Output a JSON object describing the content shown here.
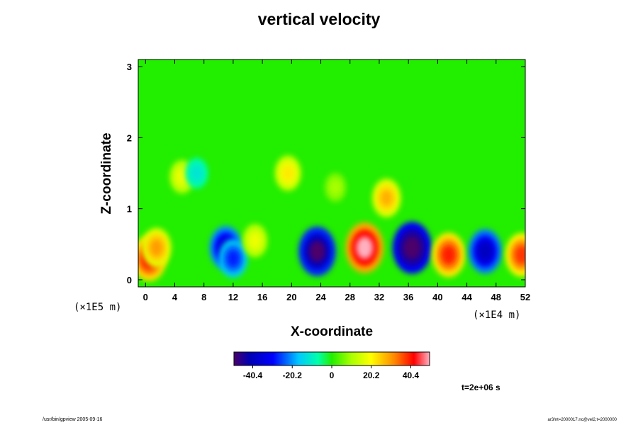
{
  "chart_data": {
    "type": "heatmap",
    "title": "vertical velocity",
    "xlabel": "X-coordinate",
    "ylabel": "Z-coordinate",
    "x_unit_label": "(×1E4 m)",
    "z_unit_label": "(×1E5 m)",
    "xlim": [
      -1,
      52
    ],
    "ylim": [
      -0.1,
      3.1
    ],
    "x_ticks": [
      0,
      4,
      8,
      12,
      16,
      20,
      24,
      28,
      32,
      36,
      40,
      44,
      48,
      52
    ],
    "y_ticks": [
      0,
      1,
      2,
      3
    ],
    "colorbar": {
      "min": -50,
      "max": 50,
      "ticks": [
        -40.4,
        -20.2,
        0,
        20.2,
        40.4
      ],
      "tick_labels": [
        "-40.4",
        "-20.2",
        "0",
        "20.2",
        "40.4"
      ]
    },
    "background_value": 0,
    "features": [
      {
        "x": 0.5,
        "z": 0.3,
        "value": 42
      },
      {
        "x": 1.5,
        "z": 0.45,
        "value": 30
      },
      {
        "x": 11.0,
        "z": 0.45,
        "value": -38
      },
      {
        "x": 12.0,
        "z": 0.3,
        "value": -28
      },
      {
        "x": 15.0,
        "z": 0.55,
        "value": 18
      },
      {
        "x": 23.5,
        "z": 0.4,
        "value": -50
      },
      {
        "x": 30.0,
        "z": 0.45,
        "value": 52
      },
      {
        "x": 36.5,
        "z": 0.45,
        "value": -55
      },
      {
        "x": 41.5,
        "z": 0.35,
        "value": 40
      },
      {
        "x": 46.5,
        "z": 0.4,
        "value": -40
      },
      {
        "x": 51.5,
        "z": 0.35,
        "value": 38
      },
      {
        "x": 19.5,
        "z": 1.5,
        "value": 22
      },
      {
        "x": 33.0,
        "z": 1.15,
        "value": 28
      },
      {
        "x": 5.0,
        "z": 1.45,
        "value": 18
      },
      {
        "x": 7.0,
        "z": 1.5,
        "value": -12
      },
      {
        "x": 26.0,
        "z": 1.3,
        "value": 10
      }
    ]
  },
  "annotations": {
    "time_label": "t=2e+06 s",
    "footer_left": "/usr/bin/gpview 2005-09-16",
    "footer_right": "ar3/nt=2000017.nc@vel2,t=2000000"
  }
}
